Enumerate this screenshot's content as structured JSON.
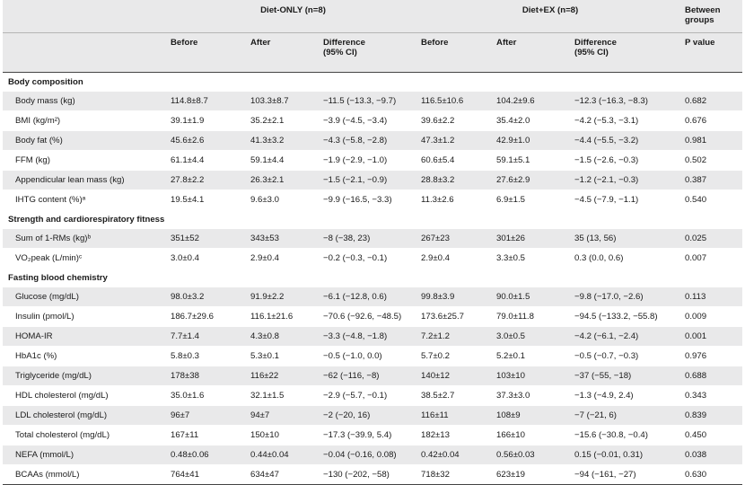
{
  "header": {
    "group1": "Diet-ONLY (n=8)",
    "group2": "Diet+EX (n=8)",
    "between": "Between groups",
    "columns": [
      "Before",
      "After",
      "Difference (95% CI)",
      "Before",
      "After",
      "Difference (95% CI)",
      "P value"
    ]
  },
  "sections": [
    {
      "title": "Body composition",
      "rows": [
        {
          "label": "Body mass (kg)",
          "values": [
            "114.8±8.7",
            "103.3±8.7",
            "−11.5 (−13.3, −9.7)",
            "116.5±10.6",
            "104.2±9.6",
            "−12.3 (−16.3, −8.3)",
            "0.682"
          ]
        },
        {
          "label": "BMI (kg/m²)",
          "values": [
            "39.1±1.9",
            "35.2±2.1",
            "−3.9 (−4.5, −3.4)",
            "39.6±2.2",
            "35.4±2.0",
            "−4.2 (−5.3, −3.1)",
            "0.676"
          ]
        },
        {
          "label": "Body fat (%)",
          "values": [
            "45.6±2.6",
            "41.3±3.2",
            "−4.3 (−5.8, −2.8)",
            "47.3±1.2",
            "42.9±1.0",
            "−4.4 (−5.5, −3.2)",
            "0.981"
          ]
        },
        {
          "label": "FFM (kg)",
          "values": [
            "61.1±4.4",
            "59.1±4.4",
            "−1.9 (−2.9, −1.0)",
            "60.6±5.4",
            "59.1±5.1",
            "−1.5 (−2.6, −0.3)",
            "0.502"
          ]
        },
        {
          "label": "Appendicular lean mass (kg)",
          "values": [
            "27.8±2.2",
            "26.3±2.1",
            "−1.5 (−2.1, −0.9)",
            "28.8±3.2",
            "27.6±2.9",
            "−1.2 (−2.1, −0.3)",
            "0.387"
          ]
        },
        {
          "label": "IHTG content (%)ᵃ",
          "values": [
            "19.5±4.1",
            "9.6±3.0",
            "−9.9 (−16.5, −3.3)",
            "11.3±2.6",
            "6.9±1.5",
            "−4.5 (−7.9, −1.1)",
            "0.540"
          ]
        }
      ]
    },
    {
      "title": "Strength and cardiorespiratory fitness",
      "rows": [
        {
          "label": "Sum of 1-RMs (kg)ᵇ",
          "values": [
            "351±52",
            "343±53",
            "−8 (−38, 23)",
            "267±23",
            "301±26",
            "35 (13, 56)",
            "0.025"
          ]
        },
        {
          "label": "VO₂peak (L/min)ᶜ",
          "values": [
            "3.0±0.4",
            "2.9±0.4",
            "−0.2 (−0.3, −0.1)",
            "2.9±0.4",
            "3.3±0.5",
            "0.3 (0.0, 0.6)",
            "0.007"
          ]
        }
      ]
    },
    {
      "title": "Fasting blood chemistry",
      "rows": [
        {
          "label": "Glucose (mg/dL)",
          "values": [
            "98.0±3.2",
            "91.9±2.2",
            "−6.1 (−12.8, 0.6)",
            "99.8±3.9",
            "90.0±1.5",
            "−9.8 (−17.0, −2.6)",
            "0.113"
          ]
        },
        {
          "label": "Insulin (pmol/L)",
          "values": [
            "186.7±29.6",
            "116.1±21.6",
            "−70.6 (−92.6, −48.5)",
            "173.6±25.7",
            "79.0±11.8",
            "−94.5 (−133.2, −55.8)",
            "0.009"
          ]
        },
        {
          "label": "HOMA-IR",
          "values": [
            "7.7±1.4",
            "4.3±0.8",
            "−3.3 (−4.8, −1.8)",
            "7.2±1.2",
            "3.0±0.5",
            "−4.2 (−6.1, −2.4)",
            "0.001"
          ]
        },
        {
          "label": "HbA1c (%)",
          "values": [
            "5.8±0.3",
            "5.3±0.1",
            "−0.5 (−1.0, 0.0)",
            "5.7±0.2",
            "5.2±0.1",
            "−0.5 (−0.7, −0.3)",
            "0.976"
          ]
        },
        {
          "label": "Triglyceride (mg/dL)",
          "values": [
            "178±38",
            "116±22",
            "−62 (−116, −8)",
            "140±12",
            "103±10",
            "−37 (−55, −18)",
            "0.688"
          ]
        },
        {
          "label": "HDL cholesterol (mg/dL)",
          "values": [
            "35.0±1.6",
            "32.1±1.5",
            "−2.9 (−5.7, −0.1)",
            "38.5±2.7",
            "37.3±3.0",
            "−1.3 (−4.9, 2.4)",
            "0.343"
          ]
        },
        {
          "label": "LDL cholesterol (mg/dL)",
          "values": [
            "96±7",
            "94±7",
            "−2 (−20, 16)",
            "116±11",
            "108±9",
            "−7 (−21, 6)",
            "0.839"
          ]
        },
        {
          "label": "Total cholesterol (mg/dL)",
          "values": [
            "167±11",
            "150±10",
            "−17.3 (−39.9, 5.4)",
            "182±13",
            "166±10",
            "−15.6 (−30.8, −0.4)",
            "0.450"
          ]
        },
        {
          "label": "NEFA (mmol/L)",
          "values": [
            "0.48±0.06",
            "0.44±0.04",
            "−0.04 (−0.16, 0.08)",
            "0.42±0.04",
            "0.56±0.03",
            "0.15 (−0.01, 0.31)",
            "0.038"
          ]
        },
        {
          "label": "BCAAs (mmol/L)",
          "values": [
            "764±41",
            "634±47",
            "−130 (−202, −58)",
            "718±32",
            "623±19",
            "−94 (−161, −27)",
            "0.630"
          ]
        }
      ]
    }
  ]
}
